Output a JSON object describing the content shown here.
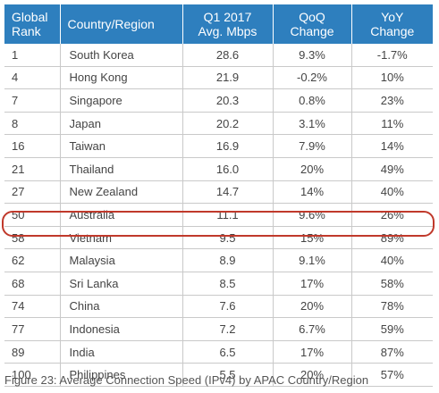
{
  "table": {
    "headers": {
      "rank": [
        "Global",
        "Rank"
      ],
      "country": "Country/Region",
      "speed": [
        "Q1 2017",
        "Avg. Mbps"
      ],
      "qoq": [
        "QoQ",
        "Change"
      ],
      "yoy": [
        "YoY",
        "Change"
      ]
    },
    "rows": [
      {
        "rank": "1",
        "country": "South Korea",
        "speed": "28.6",
        "qoq": "9.3%",
        "yoy": "-1.7%"
      },
      {
        "rank": "4",
        "country": "Hong Kong",
        "speed": "21.9",
        "qoq": "-0.2%",
        "yoy": "10%"
      },
      {
        "rank": "7",
        "country": "Singapore",
        "speed": "20.3",
        "qoq": "0.8%",
        "yoy": "23%"
      },
      {
        "rank": "8",
        "country": "Japan",
        "speed": "20.2",
        "qoq": "3.1%",
        "yoy": "11%"
      },
      {
        "rank": "16",
        "country": "Taiwan",
        "speed": "16.9",
        "qoq": "7.9%",
        "yoy": "14%"
      },
      {
        "rank": "21",
        "country": "Thailand",
        "speed": "16.0",
        "qoq": "20%",
        "yoy": "49%"
      },
      {
        "rank": "27",
        "country": "New Zealand",
        "speed": "14.7",
        "qoq": "14%",
        "yoy": "40%"
      },
      {
        "rank": "50",
        "country": "Australia",
        "speed": "11.1",
        "qoq": "9.6%",
        "yoy": "26%"
      },
      {
        "rank": "58",
        "country": "Vietnam",
        "speed": "9.5",
        "qoq": "15%",
        "yoy": "89%"
      },
      {
        "rank": "62",
        "country": "Malaysia",
        "speed": "8.9",
        "qoq": "9.1%",
        "yoy": "40%"
      },
      {
        "rank": "68",
        "country": "Sri Lanka",
        "speed": "8.5",
        "qoq": "17%",
        "yoy": "58%"
      },
      {
        "rank": "74",
        "country": "China",
        "speed": "7.6",
        "qoq": "20%",
        "yoy": "78%"
      },
      {
        "rank": "77",
        "country": "Indonesia",
        "speed": "7.2",
        "qoq": "6.7%",
        "yoy": "59%"
      },
      {
        "rank": "89",
        "country": "India",
        "speed": "6.5",
        "qoq": "17%",
        "yoy": "87%"
      },
      {
        "rank": "100",
        "country": "Philippines",
        "speed": "5.5",
        "qoq": "20%",
        "yoy": "57%"
      }
    ]
  },
  "caption": "Figure 23: Average Connection Speed (IPv4) by APAC Country/Region",
  "colors": {
    "header_bg": "#2e7fbe",
    "highlight_ring": "#c0392b"
  }
}
